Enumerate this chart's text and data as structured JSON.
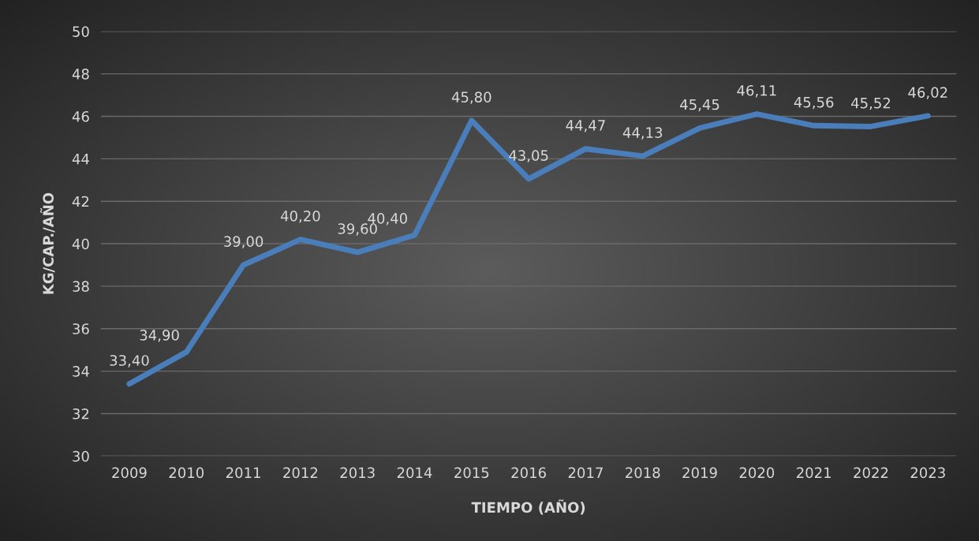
{
  "chart_data": {
    "type": "line",
    "xlabel": "TIEMPO (AÑO)",
    "ylabel": "KG/CAP./AÑO",
    "categories": [
      "2009",
      "2010",
      "2011",
      "2012",
      "2013",
      "2014",
      "2015",
      "2016",
      "2017",
      "2018",
      "2019",
      "2020",
      "2021",
      "2022",
      "2023"
    ],
    "series": [
      {
        "color": "#4a7ebb",
        "values": [
          33.4,
          34.9,
          39.0,
          40.2,
          39.6,
          40.4,
          45.8,
          43.05,
          44.47,
          44.13,
          45.45,
          46.11,
          45.56,
          45.52,
          46.02
        ],
        "value_labels": [
          "33,40",
          "34,90",
          "39,00",
          "40,20",
          "39,60",
          "40,40",
          "45,80",
          "43,05",
          "44,47",
          "44,13",
          "45,45",
          "46,11",
          "45,56",
          "45,52",
          "46,02"
        ]
      }
    ],
    "ylim": [
      30,
      50
    ],
    "yticks": [
      30,
      32,
      34,
      36,
      38,
      40,
      42,
      44,
      46,
      48,
      50
    ],
    "grid": "y",
    "marker": "none",
    "line_style": "solid",
    "legend": false
  }
}
